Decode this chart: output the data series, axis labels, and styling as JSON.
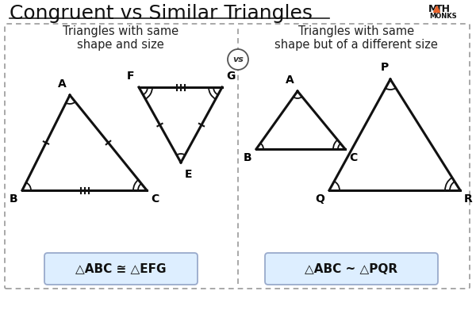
{
  "title": "Congruent vs Similar Triangles",
  "title_fontsize": 18,
  "bg_color": "#ffffff",
  "left_label": "Triangles with same\nshape and size",
  "right_label": "Triangles with same\nshape but of a different size",
  "vs_text": "vs",
  "formula_left": "△ABC ≅ △EFG",
  "formula_right": "△ABC ~ △PQR",
  "formula_bg": "#ddeeff",
  "dashed_border_color": "#999999",
  "triangle_color": "#111111",
  "lw": 2.2,
  "label_fontsize": 10.5,
  "vertex_fontsize": 10,
  "formula_fontsize": 11
}
